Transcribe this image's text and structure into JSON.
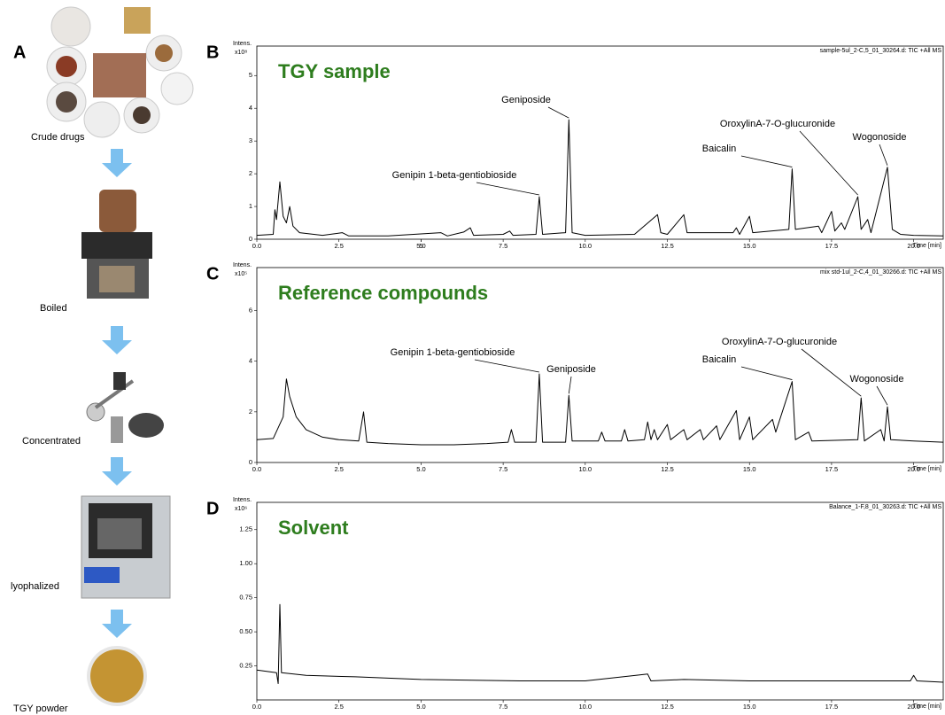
{
  "panel_a": {
    "label": "A",
    "steps": [
      "Crude drugs",
      "Boiled",
      "Concentrated",
      "lyophalized",
      "TGY powder"
    ]
  },
  "chart_data": [
    {
      "type": "line",
      "panel": "B",
      "title": "TGY sample",
      "ylabel": "Intens.",
      "yunit": "x10⁸",
      "header": "sample-5ul_2-C,5_01_30264.d: TIC +All MS",
      "xlabel": "Time [min]",
      "color": "#000000",
      "xlim": [
        0,
        20.9
      ],
      "ylim": [
        0,
        5.9
      ],
      "xticks": [
        {
          "value": 0,
          "label": "0.0"
        },
        2.5,
        5,
        {
          "value": 5,
          "label": "5.0"
        },
        7.5,
        {
          "value": 10,
          "label": "10.0"
        },
        12.5,
        {
          "value": 15,
          "label": "15.0"
        },
        17.5,
        {
          "value": 20,
          "label": "20.0"
        }
      ],
      "yticks": [
        0,
        1,
        2,
        3,
        4,
        5
      ],
      "x": [
        0,
        0.5,
        0.55,
        0.6,
        0.7,
        0.8,
        0.9,
        1.0,
        1.1,
        1.3,
        2.0,
        2.6,
        2.8,
        4.0,
        5.6,
        5.8,
        6.3,
        6.5,
        6.6,
        7.5,
        7.7,
        7.8,
        8.5,
        8.6,
        8.7,
        9.4,
        9.5,
        9.6,
        10.0,
        11.5,
        12.2,
        12.3,
        12.5,
        13.0,
        13.1,
        14.5,
        14.6,
        14.7,
        15.0,
        15.1,
        16.2,
        16.3,
        16.4,
        17.1,
        17.2,
        17.5,
        17.6,
        17.8,
        17.9,
        18.3,
        18.4,
        18.6,
        18.7,
        19.2,
        19.35,
        19.6,
        20.0,
        20.9
      ],
      "values": [
        0.12,
        0.15,
        0.9,
        0.6,
        1.75,
        0.7,
        0.5,
        1.0,
        0.4,
        0.2,
        0.12,
        0.2,
        0.1,
        0.1,
        0.2,
        0.1,
        0.22,
        0.35,
        0.12,
        0.15,
        0.25,
        0.12,
        0.15,
        1.3,
        0.15,
        0.2,
        3.65,
        0.2,
        0.12,
        0.15,
        0.75,
        0.2,
        0.15,
        0.75,
        0.2,
        0.2,
        0.35,
        0.15,
        0.7,
        0.2,
        0.3,
        2.15,
        0.3,
        0.4,
        0.2,
        0.85,
        0.25,
        0.5,
        0.3,
        1.3,
        0.3,
        0.6,
        0.2,
        2.2,
        0.3,
        0.15,
        0.12,
        0.1
      ],
      "annotations": [
        {
          "text": "Genipin 1-beta-gentiobioside",
          "x": 8.6,
          "y": 1.3
        },
        {
          "text": "Geniposide",
          "x": 9.5,
          "y": 3.65
        },
        {
          "text": "Baicalin",
          "x": 16.3,
          "y": 2.15
        },
        {
          "text": "OroxylinA-7-O-glucuronide",
          "x": 18.3,
          "y": 1.3
        },
        {
          "text": "Wogonoside",
          "x": 19.2,
          "y": 2.2
        }
      ]
    },
    {
      "type": "line",
      "panel": "C",
      "title": "Reference compounds",
      "ylabel": "Intens.",
      "yunit": "x10⁵",
      "header": "mix std-1ul_2-C,4_01_30266.d: TIC +All MS",
      "xlabel": "Time [min]",
      "color": "#000000",
      "xlim": [
        0,
        20.9
      ],
      "ylim": [
        0,
        7.7
      ],
      "xticks": [
        {
          "value": 0,
          "label": "0.0"
        },
        2.5,
        {
          "value": 5,
          "label": "5.0"
        },
        7.5,
        {
          "value": 10,
          "label": "10.0"
        },
        12.5,
        {
          "value": 15,
          "label": "15.0"
        },
        17.5,
        {
          "value": 20,
          "label": "20.0"
        }
      ],
      "yticks": [
        0,
        2,
        4,
        6
      ],
      "x": [
        0,
        0.5,
        0.8,
        0.9,
        1.0,
        1.2,
        1.5,
        2.0,
        2.5,
        3.1,
        3.25,
        3.35,
        4.0,
        5.0,
        6.0,
        7.0,
        7.65,
        7.75,
        7.85,
        8.5,
        8.6,
        8.7,
        9.4,
        9.5,
        9.6,
        10.4,
        10.5,
        10.6,
        11.1,
        11.2,
        11.3,
        11.8,
        11.9,
        12.0,
        12.1,
        12.2,
        12.5,
        12.6,
        13.0,
        13.1,
        13.5,
        13.6,
        14.0,
        14.1,
        14.6,
        14.7,
        15.0,
        15.1,
        15.7,
        15.8,
        16.3,
        16.4,
        16.8,
        16.9,
        18.3,
        18.4,
        18.5,
        19.0,
        19.1,
        19.2,
        19.3,
        20.0,
        20.9
      ],
      "values": [
        0.9,
        0.95,
        1.8,
        3.3,
        2.6,
        1.8,
        1.3,
        1.0,
        0.9,
        0.85,
        2.0,
        0.8,
        0.75,
        0.7,
        0.7,
        0.75,
        0.8,
        1.3,
        0.8,
        0.8,
        3.5,
        0.8,
        0.8,
        2.65,
        0.85,
        0.85,
        1.2,
        0.85,
        0.85,
        1.3,
        0.85,
        0.9,
        1.6,
        0.9,
        1.3,
        0.9,
        1.5,
        0.9,
        1.3,
        0.9,
        1.3,
        0.9,
        1.45,
        0.9,
        2.05,
        0.9,
        1.8,
        0.9,
        1.7,
        1.2,
        3.2,
        0.9,
        1.2,
        0.85,
        0.9,
        2.55,
        0.85,
        1.3,
        0.85,
        2.2,
        0.9,
        0.85,
        0.8
      ],
      "annotations": [
        {
          "text": "Genipin 1-beta-gentiobioside",
          "x": 8.6,
          "y": 3.5
        },
        {
          "text": "Geniposide",
          "x": 9.5,
          "y": 2.65
        },
        {
          "text": "Baicalin",
          "x": 16.3,
          "y": 3.2
        },
        {
          "text": "OroxylinA-7-O-glucuronide",
          "x": 18.4,
          "y": 2.55
        },
        {
          "text": "Wogonoside",
          "x": 19.2,
          "y": 2.2
        }
      ]
    },
    {
      "type": "line",
      "panel": "D",
      "title": "Solvent",
      "ylabel": "Intens.",
      "yunit": "x10⁶",
      "header": "Balance_1-F,8_01_30263.d: TIC +All MS",
      "xlabel": "Time [min]",
      "color": "#000000",
      "xlim": [
        0,
        20.9
      ],
      "ylim": [
        0,
        1.45
      ],
      "xticks": [
        {
          "value": 0,
          "label": "0.0"
        },
        2.5,
        {
          "value": 5,
          "label": "5.0"
        },
        7.5,
        {
          "value": 10,
          "label": "10.0"
        },
        12.5,
        {
          "value": 15,
          "label": "15.0"
        },
        17.5,
        {
          "value": 20,
          "label": "20.0"
        }
      ],
      "yticks": [
        0.25,
        {
          "value": 0.5,
          "label": "0.50"
        },
        0.75,
        {
          "value": 1,
          "label": "1.00"
        },
        1.25
      ],
      "x": [
        0,
        0.6,
        0.65,
        0.7,
        0.75,
        1.5,
        3,
        5,
        8,
        10,
        11.9,
        12.0,
        13,
        15,
        17,
        19.9,
        20.0,
        20.1,
        20.9
      ],
      "values": [
        0.22,
        0.2,
        0.12,
        0.7,
        0.2,
        0.18,
        0.17,
        0.15,
        0.14,
        0.14,
        0.19,
        0.14,
        0.15,
        0.14,
        0.14,
        0.14,
        0.18,
        0.14,
        0.13
      ],
      "annotations": []
    }
  ]
}
